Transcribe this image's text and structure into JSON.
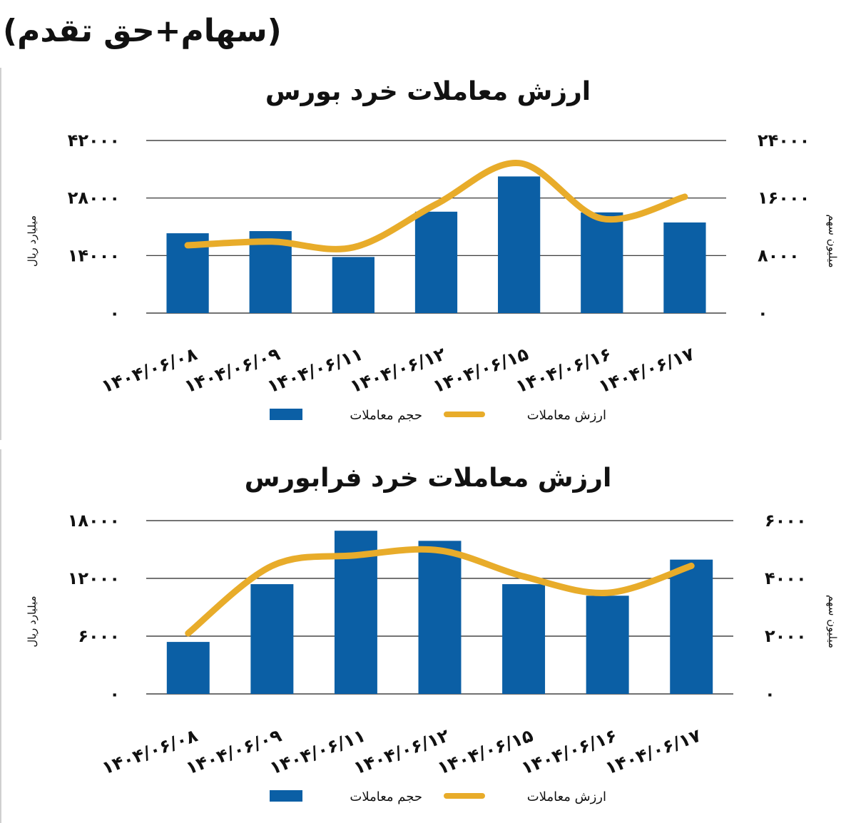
{
  "header": "(سهام+حق تقدم)",
  "chart_data": [
    {
      "type": "bar",
      "title": "ارزش معاملات خرد بورس",
      "categories": [
        "1404/06/08",
        "1404/06/09",
        "1404/06/11",
        "1404/06/12",
        "1404/06/15",
        "1404/06/16",
        "1404/06/17"
      ],
      "category_labels": [
        "۱۴۰۴/۰۶/۰۸",
        "۱۴۰۴/۰۶/۰۹",
        "۱۴۰۴/۰۶/۱۱",
        "۱۴۰۴/۰۶/۱۲",
        "۱۴۰۴/۰۶/۱۵",
        "۱۴۰۴/۰۶/۱۶",
        "۱۴۰۴/۰۶/۱۷"
      ],
      "ylabel_left": "میلیارد ریال",
      "ylabel_right": "میلیون سهم",
      "yticks_left": [
        "۰",
        "۱۴۰۰۰",
        "۲۸۰۰۰",
        "۴۲۰۰۰"
      ],
      "yticks_right": [
        "۰",
        "۸۰۰۰",
        "۱۶۰۰۰",
        "۲۴۰۰۰"
      ],
      "ylim_left": [
        0,
        42000
      ],
      "ylim_right": [
        0,
        24000
      ],
      "series": [
        {
          "name": "حجم معاملات",
          "kind": "bar",
          "axis": "right",
          "color": "#0b5fa5",
          "values": [
            11100,
            11400,
            7800,
            14100,
            19000,
            14000,
            12600
          ]
        },
        {
          "name": "ارزش معاملات",
          "kind": "line",
          "axis": "left",
          "color": "#e8ac2a",
          "values": [
            16500,
            17400,
            16000,
            26500,
            36500,
            23000,
            28300
          ]
        }
      ],
      "grid": true,
      "legend": "bottom"
    },
    {
      "type": "bar",
      "title": "ارزش معاملات خرد فرابورس",
      "categories": [
        "1404/06/08",
        "1404/06/09",
        "1404/06/11",
        "1404/06/12",
        "1404/06/15",
        "1404/06/16",
        "1404/06/17"
      ],
      "category_labels": [
        "۱۴۰۴/۰۶/۰۸",
        "۱۴۰۴/۰۶/۰۹",
        "۱۴۰۴/۰۶/۱۱",
        "۱۴۰۴/۰۶/۱۲",
        "۱۴۰۴/۰۶/۱۵",
        "۱۴۰۴/۰۶/۱۶",
        "۱۴۰۴/۰۶/۱۷"
      ],
      "ylabel_left": "میلیارد ریال",
      "ylabel_right": "میلیون سهم",
      "yticks_left": [
        "۰",
        "۶۰۰۰",
        "۱۲۰۰۰",
        "۱۸۰۰۰"
      ],
      "yticks_right": [
        "۰",
        "۲۰۰۰",
        "۴۰۰۰",
        "۶۰۰۰"
      ],
      "ylim_left": [
        0,
        18000
      ],
      "ylim_right": [
        0,
        6000
      ],
      "series": [
        {
          "name": "حجم معاملات",
          "kind": "bar",
          "axis": "right",
          "color": "#0b5fa5",
          "values": [
            1800,
            3800,
            5650,
            5300,
            3800,
            3400,
            4650
          ]
        },
        {
          "name": "ارزش معاملات",
          "kind": "line",
          "axis": "left",
          "color": "#e8ac2a",
          "values": [
            6300,
            13300,
            14400,
            14900,
            12200,
            10500,
            13300
          ]
        }
      ],
      "grid": true,
      "legend": "bottom"
    }
  ]
}
